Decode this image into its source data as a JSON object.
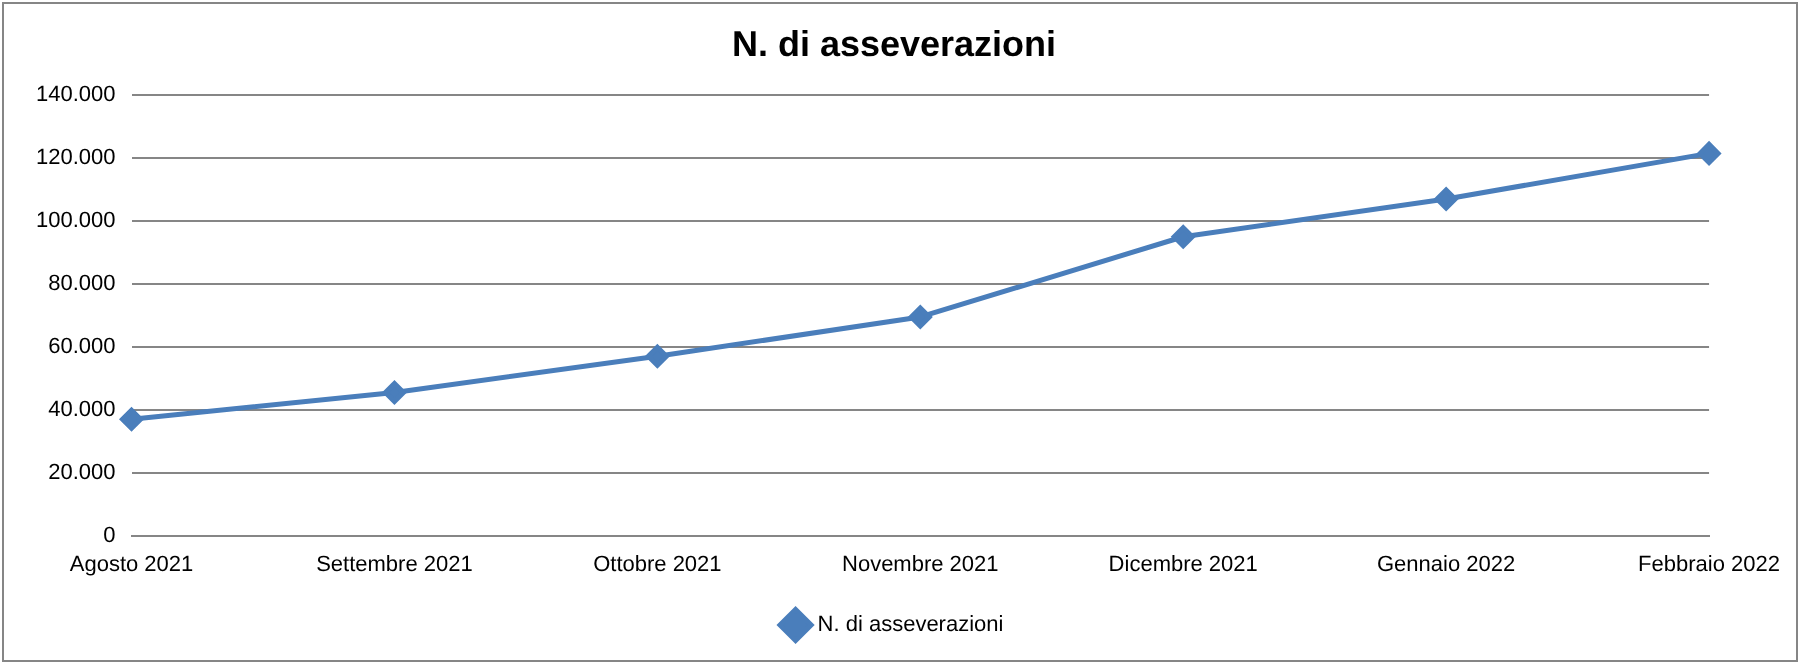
{
  "chart_data": {
    "type": "line",
    "title": "N. di asseverazioni",
    "categories": [
      "Agosto 2021",
      "Settembre 2021",
      "Ottobre 2021",
      "Novembre 2021",
      "Dicembre 2021",
      "Gennaio 2022",
      "Febbraio 2022"
    ],
    "series": [
      {
        "name": "N. di asseverazioni",
        "color": "#4a7ebb",
        "values": [
          37000,
          45500,
          57000,
          69500,
          95000,
          107000,
          121500
        ]
      }
    ],
    "ylim": [
      0,
      140000
    ],
    "yticks": [
      0,
      {
        "value": 20000,
        "label": "20.000"
      },
      {
        "value": 40000,
        "label": "40.000"
      },
      {
        "value": 60000,
        "label": "60.000"
      },
      {
        "value": 80000,
        "label": "80.000"
      },
      {
        "value": 100000,
        "label": "100.000"
      },
      {
        "value": 120000,
        "label": "120.000"
      },
      {
        "value": 140000,
        "label": "140.000"
      }
    ],
    "grid": "y",
    "legend": "bottom",
    "marker": "diamond",
    "line_style": "solid"
  }
}
